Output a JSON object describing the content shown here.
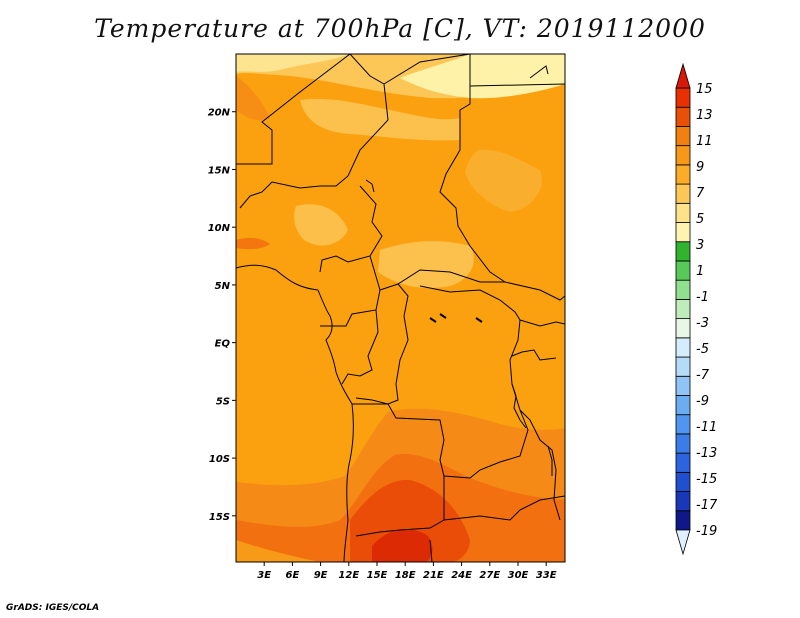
{
  "title": "Temperature at 700hPa [C], VT: 2019112000",
  "credit": "GrADS: IGES/COLA",
  "map": {
    "lon_range": [
      0,
      35
    ],
    "lat_range": [
      -19,
      25
    ],
    "lat_ticks": [
      {
        "lat": 20,
        "label": "20N"
      },
      {
        "lat": 15,
        "label": "15N"
      },
      {
        "lat": 10,
        "label": "10N"
      },
      {
        "lat": 5,
        "label": "5N"
      },
      {
        "lat": 0,
        "label": "EQ"
      },
      {
        "lat": -5,
        "label": "5S"
      },
      {
        "lat": -10,
        "label": "10S"
      },
      {
        "lat": -15,
        "label": "15S"
      }
    ],
    "lon_ticks": [
      {
        "lon": 3,
        "label": "3E"
      },
      {
        "lon": 6,
        "label": "6E"
      },
      {
        "lon": 9,
        "label": "9E"
      },
      {
        "lon": 12,
        "label": "12E"
      },
      {
        "lon": 15,
        "label": "15E"
      },
      {
        "lon": 18,
        "label": "18E"
      },
      {
        "lon": 21,
        "label": "21E"
      },
      {
        "lon": 24,
        "label": "24E"
      },
      {
        "lon": 27,
        "label": "27E"
      },
      {
        "lon": 30,
        "label": "30E"
      },
      {
        "lon": 33,
        "label": "33E"
      }
    ]
  },
  "colorbar": {
    "labels": [
      "15",
      "13",
      "11",
      "9",
      "7",
      "5",
      "3",
      "1",
      "-1",
      "-3",
      "-5",
      "-7",
      "-9",
      "-11",
      "-13",
      "-15",
      "-17",
      "-19"
    ],
    "colors": [
      "#e0f0ff",
      "#101888",
      "#1838b8",
      "#2050d0",
      "#2c64e0",
      "#3c7ce8",
      "#5096f0",
      "#6cacf0",
      "#90c4f4",
      "#b4dcf8",
      "#d4ecfc",
      "#e8f8e8",
      "#c0ecbc",
      "#90e090",
      "#58c858",
      "#30b430",
      "#fcf4b0",
      "#fde28a",
      "#fcc858",
      "#fcac28",
      "#f79818",
      "#f08010",
      "#e85008",
      "#e83000",
      "#d81808"
    ]
  },
  "field": {
    "base_color": "#fba10f"
  }
}
